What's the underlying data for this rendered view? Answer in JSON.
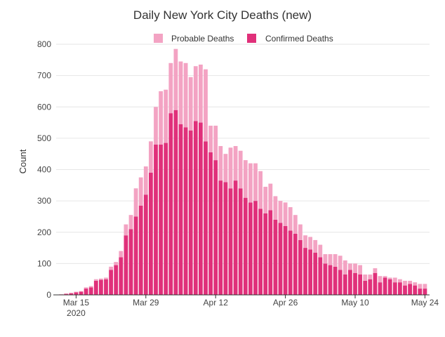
{
  "chart_data": {
    "type": "bar",
    "stacked": true,
    "title": "Daily New York City Deaths (new)",
    "xlabel": "",
    "ylabel": "Count",
    "ylim": [
      0,
      800
    ],
    "yticks": [
      0,
      100,
      200,
      300,
      400,
      500,
      600,
      700,
      800
    ],
    "grid": true,
    "legend_position": "top",
    "start_date": "2020-03-11",
    "xtick_labels": [
      {
        "date": "2020-03-15",
        "label": "Mar 15",
        "sublabel": "2020"
      },
      {
        "date": "2020-03-29",
        "label": "Mar 29"
      },
      {
        "date": "2020-04-12",
        "label": "Apr 12"
      },
      {
        "date": "2020-04-26",
        "label": "Apr 26"
      },
      {
        "date": "2020-05-10",
        "label": "May 10"
      },
      {
        "date": "2020-05-24",
        "label": "May 24"
      }
    ],
    "series": [
      {
        "name": "Confirmed Deaths",
        "color": "#e0307a",
        "values": [
          0,
          1,
          3,
          5,
          8,
          10,
          20,
          24,
          45,
          48,
          50,
          80,
          95,
          120,
          190,
          210,
          250,
          285,
          320,
          390,
          480,
          480,
          485,
          580,
          590,
          545,
          535,
          525,
          555,
          550,
          490,
          455,
          430,
          365,
          360,
          340,
          365,
          340,
          310,
          295,
          300,
          275,
          260,
          270,
          240,
          230,
          220,
          205,
          195,
          175,
          150,
          145,
          135,
          120,
          100,
          95,
          90,
          80,
          65,
          80,
          70,
          65,
          45,
          50,
          70,
          40,
          55,
          50,
          40,
          40,
          30,
          35,
          30,
          20,
          20
        ]
      },
      {
        "name": "Probable Deaths",
        "color": "#f3a3c3",
        "values": [
          0,
          1,
          2,
          2,
          2,
          2,
          4,
          4,
          5,
          4,
          5,
          10,
          10,
          20,
          35,
          45,
          90,
          90,
          90,
          100,
          120,
          170,
          170,
          160,
          195,
          200,
          205,
          170,
          175,
          185,
          230,
          85,
          110,
          110,
          90,
          130,
          110,
          120,
          120,
          125,
          120,
          120,
          85,
          85,
          75,
          70,
          75,
          75,
          60,
          50,
          40,
          40,
          40,
          40,
          30,
          35,
          40,
          45,
          45,
          20,
          30,
          30,
          20,
          15,
          15,
          20,
          5,
          5,
          15,
          10,
          15,
          10,
          10,
          15,
          15
        ]
      }
    ]
  }
}
